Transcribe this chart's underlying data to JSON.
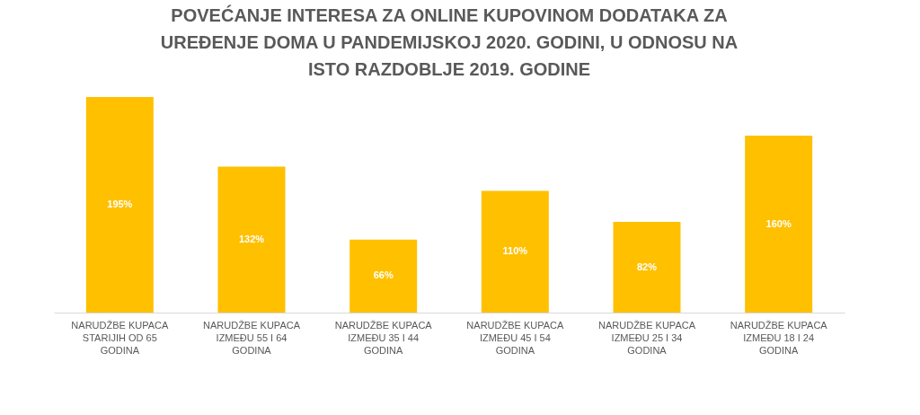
{
  "chart_data": {
    "type": "bar",
    "title": "POVEĆANJE INTERESA ZA ONLINE KUPOVINOM DODATAKA ZA UREĐENJE DOMA U PANDEMIJSKOJ 2020. GODINI, U ODNOSU NA ISTO RAZDOBLJE 2019. GODINE",
    "categories": [
      "NARUDŽBE KUPACA STARIJIH OD 65 GODINA",
      "NARUDŽBE KUPACA IZMEĐU 55 I 64 GODINA",
      "NARUDŽBE KUPACA IZMEĐU 35 I 44 GODINA",
      "NARUDŽBE KUPACA IZMEĐU 45 I 54 GODINA",
      "NARUDŽBE KUPACA IZMEĐU 25 I 34 GODINA",
      "NARUDŽBE KUPACA IZMEĐU 18 I 24 GODINA"
    ],
    "values": [
      195,
      132,
      66,
      110,
      82,
      160
    ],
    "value_labels": [
      "195%",
      "132%",
      "66%",
      "110%",
      "82%",
      "160%"
    ],
    "color": "#ffc000"
  }
}
